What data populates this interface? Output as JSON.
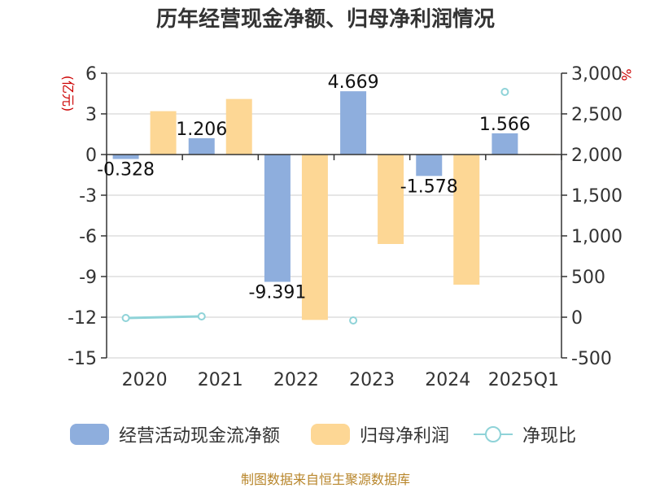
{
  "chart_data": {
    "type": "bar",
    "title": "历年经营现金净额、归母净利润情况",
    "categories": [
      "2020",
      "2021",
      "2022",
      "2023",
      "2024",
      "2025Q1"
    ],
    "left_axis": {
      "unit": "(亿元)",
      "min": -15,
      "max": 6,
      "ticks": [
        "6",
        "3",
        "0",
        "-3",
        "-6",
        "-9",
        "-12",
        "-15"
      ]
    },
    "right_axis": {
      "unit": "%",
      "min": -500,
      "max": 3000,
      "ticks": [
        "3,000",
        "2,500",
        "2,000",
        "1,500",
        "1,000",
        "500",
        "0",
        "-500"
      ]
    },
    "series": [
      {
        "name": "经营活动现金流净额",
        "type": "bar",
        "axis": "left",
        "color": "#8eaedd",
        "values": [
          -0.328,
          1.206,
          -9.391,
          4.669,
          -1.578,
          1.566
        ],
        "labels": [
          "-0.328",
          "1.206",
          "-9.391",
          "4.669",
          "-1.578",
          "1.566"
        ]
      },
      {
        "name": "归母净利润",
        "type": "bar",
        "axis": "left",
        "color": "#fdd795",
        "values": [
          3.2,
          4.1,
          -12.2,
          -6.6,
          -9.6,
          0.05
        ]
      },
      {
        "name": "净现比",
        "type": "line",
        "axis": "right",
        "color": "#8fd3d8",
        "values": [
          -10,
          10,
          null,
          -40,
          null,
          2770
        ]
      }
    ],
    "grid": true,
    "legend_position": "bottom"
  },
  "source": "制图数据来自恒生聚源数据库"
}
